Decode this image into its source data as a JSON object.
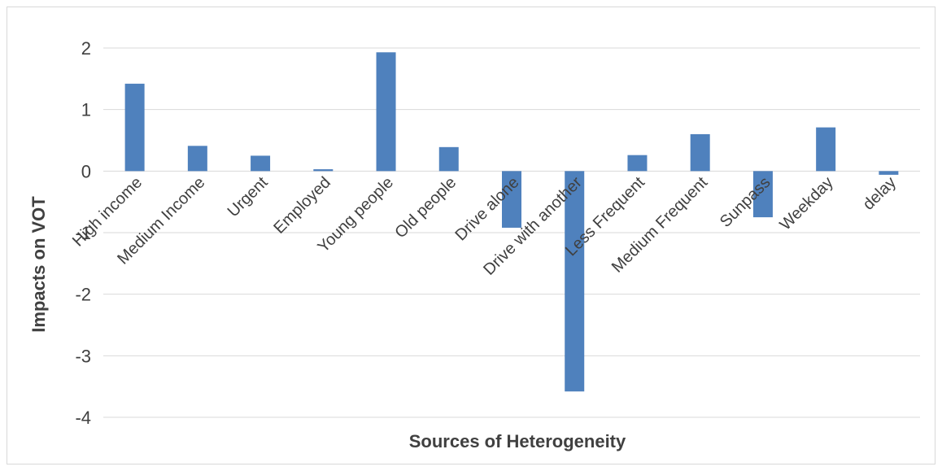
{
  "chart_data": {
    "type": "bar",
    "title": "",
    "xlabel": "Sources of Heterogeneity",
    "ylabel": "Impacts on VOT",
    "ylim": [
      -4,
      2
    ],
    "yticks": [
      2,
      1,
      0,
      -1,
      -2,
      -3,
      -4
    ],
    "grid": true,
    "legend": "none",
    "categories": [
      "High income",
      "Medium Income",
      "Urgent",
      "Employed",
      "Young people",
      "Old people",
      "Drive alone",
      "Drive with another",
      "Less Frequent",
      "Medium Frequent",
      "Sunpass",
      "Weekday",
      "delay"
    ],
    "values": [
      1.42,
      0.41,
      0.25,
      0.03,
      1.93,
      0.39,
      -0.92,
      -3.58,
      0.26,
      0.6,
      -0.75,
      0.71,
      -0.06
    ],
    "colors": {
      "bar": "#4f81bd",
      "grid": "#d9d9d9",
      "text": "#404040"
    }
  }
}
